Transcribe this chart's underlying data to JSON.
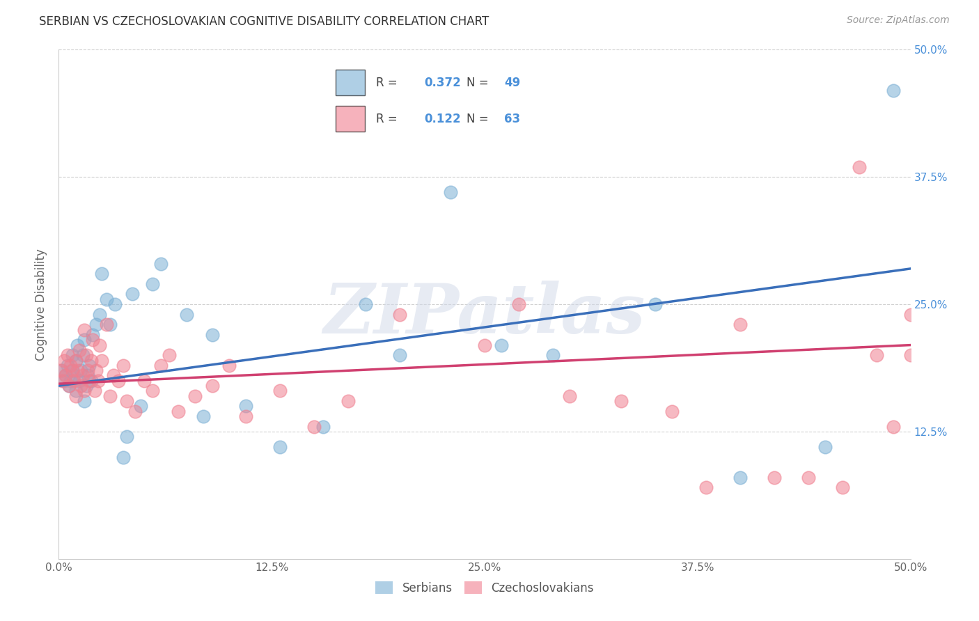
{
  "title": "SERBIAN VS CZECHOSLOVAKIAN COGNITIVE DISABILITY CORRELATION CHART",
  "source": "Source: ZipAtlas.com",
  "ylabel": "Cognitive Disability",
  "xlim": [
    0.0,
    0.5
  ],
  "ylim": [
    0.0,
    0.5
  ],
  "xtick_vals": [
    0.0,
    0.125,
    0.25,
    0.375,
    0.5
  ],
  "ytick_vals": [
    0.125,
    0.25,
    0.375,
    0.5
  ],
  "serbian_color": "#7bafd4",
  "czechoslovakian_color": "#f08090",
  "serbian_line_color": "#3a6fba",
  "czechoslovakian_line_color": "#d04070",
  "right_axis_color": "#4a90d9",
  "watermark_text": "ZIPatlas",
  "background_color": "#ffffff",
  "grid_color": "#cccccc",
  "legend_r1": "R = 0.372",
  "legend_n1": "N = 49",
  "legend_r2": "R = 0.122",
  "legend_n2": "N = 63",
  "serbian_x": [
    0.002,
    0.003,
    0.004,
    0.005,
    0.006,
    0.007,
    0.008,
    0.008,
    0.009,
    0.01,
    0.01,
    0.011,
    0.012,
    0.013,
    0.014,
    0.015,
    0.015,
    0.016,
    0.017,
    0.018,
    0.019,
    0.02,
    0.022,
    0.024,
    0.025,
    0.028,
    0.03,
    0.033,
    0.038,
    0.04,
    0.043,
    0.048,
    0.055,
    0.06,
    0.075,
    0.085,
    0.09,
    0.11,
    0.13,
    0.155,
    0.18,
    0.2,
    0.23,
    0.26,
    0.29,
    0.35,
    0.4,
    0.45,
    0.49
  ],
  "serbian_y": [
    0.185,
    0.175,
    0.18,
    0.19,
    0.17,
    0.175,
    0.185,
    0.2,
    0.18,
    0.165,
    0.195,
    0.21,
    0.175,
    0.185,
    0.2,
    0.155,
    0.215,
    0.17,
    0.18,
    0.19,
    0.175,
    0.22,
    0.23,
    0.24,
    0.28,
    0.255,
    0.23,
    0.25,
    0.1,
    0.12,
    0.26,
    0.15,
    0.27,
    0.29,
    0.24,
    0.14,
    0.22,
    0.15,
    0.11,
    0.13,
    0.25,
    0.2,
    0.36,
    0.21,
    0.2,
    0.25,
    0.08,
    0.11,
    0.46
  ],
  "czechoslovakian_x": [
    0.001,
    0.002,
    0.003,
    0.004,
    0.005,
    0.006,
    0.007,
    0.008,
    0.009,
    0.01,
    0.01,
    0.011,
    0.012,
    0.013,
    0.014,
    0.015,
    0.015,
    0.016,
    0.017,
    0.018,
    0.019,
    0.02,
    0.021,
    0.022,
    0.023,
    0.024,
    0.025,
    0.028,
    0.03,
    0.032,
    0.035,
    0.038,
    0.04,
    0.045,
    0.05,
    0.055,
    0.06,
    0.065,
    0.07,
    0.08,
    0.09,
    0.1,
    0.11,
    0.13,
    0.15,
    0.17,
    0.2,
    0.25,
    0.27,
    0.3,
    0.33,
    0.36,
    0.38,
    0.4,
    0.42,
    0.44,
    0.46,
    0.47,
    0.48,
    0.49,
    0.5,
    0.5,
    0.51
  ],
  "czechoslovakian_y": [
    0.185,
    0.175,
    0.195,
    0.18,
    0.2,
    0.17,
    0.19,
    0.185,
    0.175,
    0.16,
    0.195,
    0.185,
    0.205,
    0.17,
    0.18,
    0.165,
    0.225,
    0.2,
    0.185,
    0.175,
    0.195,
    0.215,
    0.165,
    0.185,
    0.175,
    0.21,
    0.195,
    0.23,
    0.16,
    0.18,
    0.175,
    0.19,
    0.155,
    0.145,
    0.175,
    0.165,
    0.19,
    0.2,
    0.145,
    0.16,
    0.17,
    0.19,
    0.14,
    0.165,
    0.13,
    0.155,
    0.24,
    0.21,
    0.25,
    0.16,
    0.155,
    0.145,
    0.07,
    0.23,
    0.08,
    0.08,
    0.07,
    0.385,
    0.2,
    0.13,
    0.2,
    0.24,
    0.21
  ]
}
